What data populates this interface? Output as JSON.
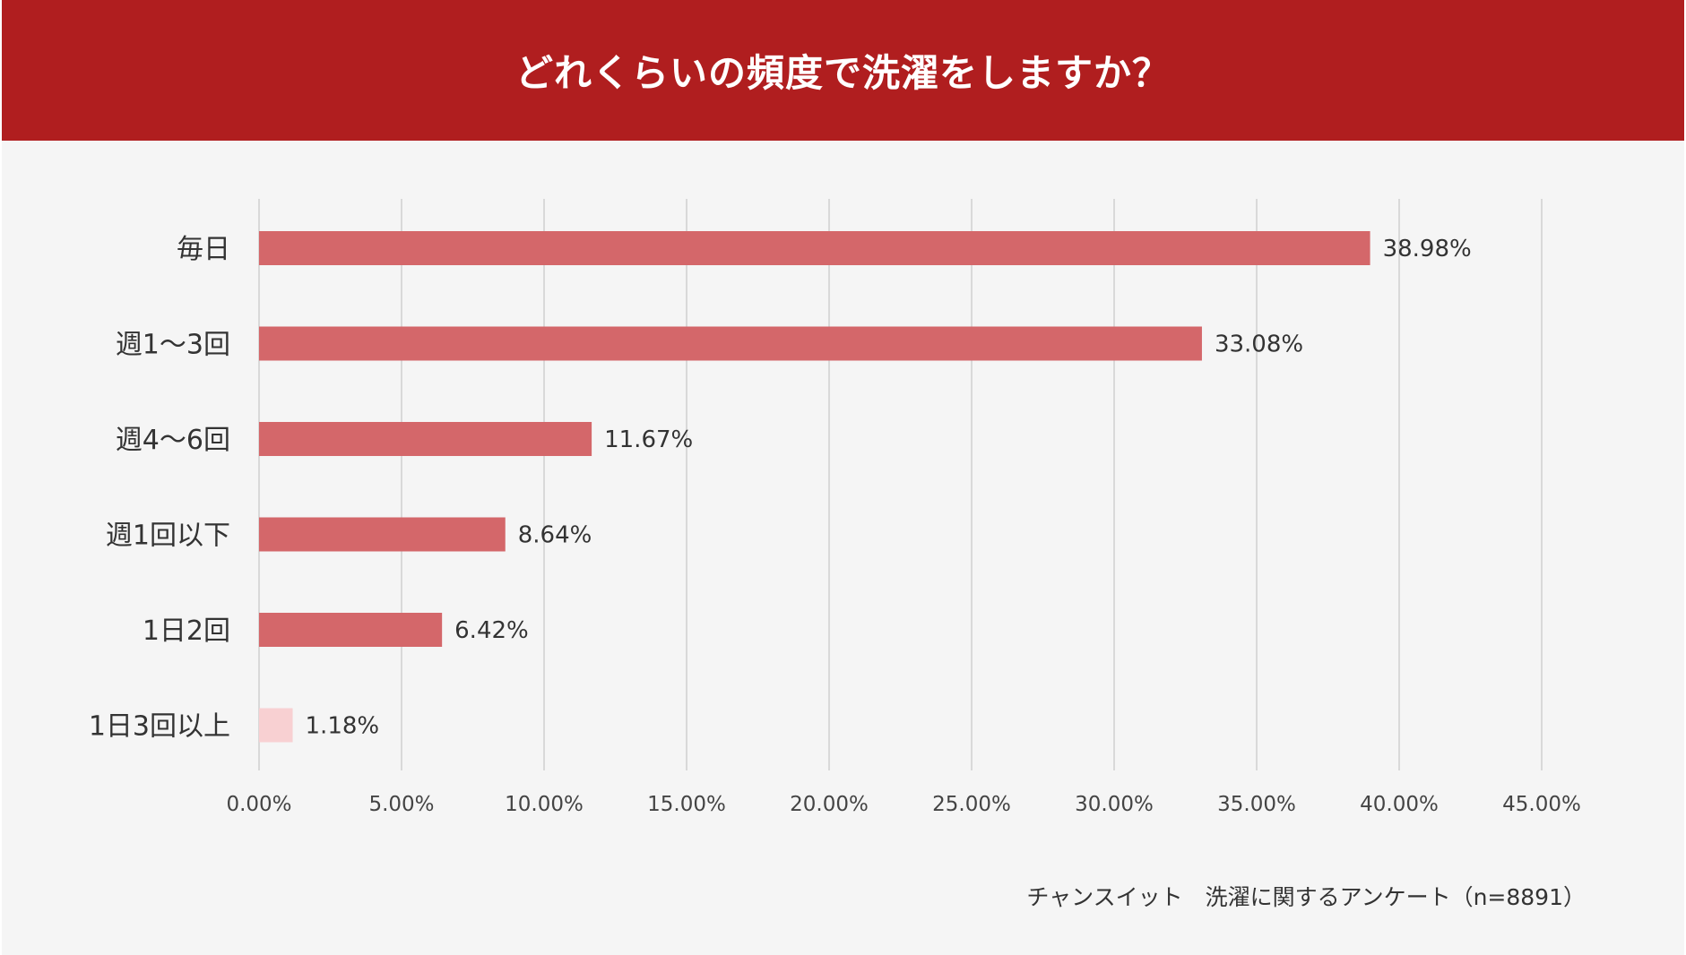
{
  "title": "どれくらいの頻度で洗濯をしますか？",
  "source": "チャンスイット　洗濯に関するアンケート（n=8891）",
  "colors": {
    "header_bg": "#b01e1f",
    "bar": "#d4676a",
    "bar_highlight_light": "#f8d0d2",
    "grid": "#d9d9d9",
    "text": "#333333"
  },
  "chart_data": {
    "type": "bar",
    "orientation": "horizontal",
    "categories": [
      "毎日",
      "週1〜3回",
      "週4〜6回",
      "週1回以下",
      "1日2回",
      "1日3回以上"
    ],
    "values": [
      38.98,
      33.08,
      11.67,
      8.64,
      6.42,
      1.18
    ],
    "value_labels": [
      "38.98%",
      "33.08%",
      "11.67%",
      "8.64%",
      "6.42%",
      "1.18%"
    ],
    "xlim": [
      0,
      45
    ],
    "xticks": [
      0,
      5,
      10,
      15,
      20,
      25,
      30,
      35,
      40,
      45
    ],
    "xtick_labels": [
      "0.00%",
      "5.00%",
      "10.00%",
      "15.00%",
      "20.00%",
      "25.00%",
      "30.00%",
      "35.00%",
      "40.00%",
      "45.00%"
    ],
    "grid": true,
    "legend": "none"
  }
}
